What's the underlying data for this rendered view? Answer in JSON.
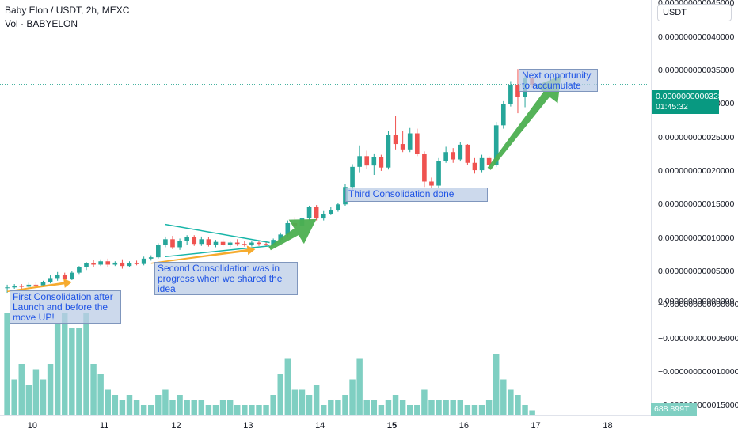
{
  "header": {
    "symbol": "Baby Elon / USDT, 2h, MEXC",
    "volume_label": "Vol · BABYELON"
  },
  "currency_selector": {
    "value": "USDT"
  },
  "price_tag": {
    "price": "0.000000000032890",
    "countdown": "01:45:32"
  },
  "volume_tag": {
    "value": "688.899T"
  },
  "notes": {
    "first": "First Consolidation after Launch and before the move UP!",
    "second": "Second Consolidation was in progress when we shared the idea",
    "third": "Third Consolidation done",
    "next": "Next opportunity to accumulate"
  },
  "colors": {
    "up": "#26a69a",
    "down": "#ef5350",
    "volume": "#7fcfc2",
    "arrow_orange": "#f5a623",
    "arrow_green": "#4caf50",
    "trendline": "#17b5a8",
    "price_line": "#089981"
  },
  "chart_data": {
    "type": "candlestick",
    "price_axis": {
      "labels": [
        "0.000000000045000",
        "0.000000000040000",
        "0.000000000035000",
        "0.000000000030000",
        "0.000000000025000",
        "0.000000000020000",
        "0.000000000015000",
        "0.000000000010000",
        "0.000000000005000",
        "0.000000000000000",
        "−0.000000000000000",
        "−0.000000000005000",
        "−0.000000000010000",
        "−0.000000000015000"
      ],
      "values": [
        45,
        40,
        35,
        30,
        25,
        20,
        15,
        10,
        5,
        0.5,
        0,
        -5,
        -10,
        -15
      ],
      "unit": "1e-12 USDT",
      "ylim": [
        -16.5,
        45.5
      ]
    },
    "time_axis": {
      "ticks": [
        "10",
        "11",
        "12",
        "13",
        "14",
        "15",
        "16",
        "17",
        "18"
      ],
      "bold": [
        "15"
      ]
    },
    "x_range": [
      9.55,
      18.6
    ],
    "candles": [
      {
        "t": 9.65,
        "o": 2.5,
        "h": 3.0,
        "l": 1.8,
        "c": 2.6
      },
      {
        "t": 9.75,
        "o": 2.6,
        "h": 3.1,
        "l": 2.4,
        "c": 2.8
      },
      {
        "t": 9.85,
        "o": 2.8,
        "h": 3.1,
        "l": 2.2,
        "c": 2.7
      },
      {
        "t": 9.95,
        "o": 2.7,
        "h": 3.3,
        "l": 2.5,
        "c": 3.0
      },
      {
        "t": 10.05,
        "o": 3.0,
        "h": 3.4,
        "l": 2.6,
        "c": 2.9
      },
      {
        "t": 10.15,
        "o": 2.9,
        "h": 3.6,
        "l": 2.8,
        "c": 3.4
      },
      {
        "t": 10.25,
        "o": 3.4,
        "h": 4.4,
        "l": 3.2,
        "c": 4.0
      },
      {
        "t": 10.35,
        "o": 4.0,
        "h": 4.9,
        "l": 3.6,
        "c": 4.5
      },
      {
        "t": 10.45,
        "o": 4.5,
        "h": 4.8,
        "l": 3.3,
        "c": 3.8
      },
      {
        "t": 10.55,
        "o": 3.8,
        "h": 5.0,
        "l": 3.7,
        "c": 4.8
      },
      {
        "t": 10.65,
        "o": 4.8,
        "h": 5.8,
        "l": 4.6,
        "c": 5.6
      },
      {
        "t": 10.75,
        "o": 5.6,
        "h": 6.4,
        "l": 5.2,
        "c": 6.2
      },
      {
        "t": 10.85,
        "o": 6.2,
        "h": 6.7,
        "l": 5.6,
        "c": 6.0
      },
      {
        "t": 10.95,
        "o": 6.0,
        "h": 6.8,
        "l": 5.8,
        "c": 6.5
      },
      {
        "t": 11.05,
        "o": 6.5,
        "h": 6.9,
        "l": 5.7,
        "c": 6.0
      },
      {
        "t": 11.15,
        "o": 6.0,
        "h": 6.5,
        "l": 5.8,
        "c": 6.3
      },
      {
        "t": 11.25,
        "o": 6.3,
        "h": 6.8,
        "l": 5.4,
        "c": 5.8
      },
      {
        "t": 11.35,
        "o": 5.8,
        "h": 6.5,
        "l": 5.6,
        "c": 6.2
      },
      {
        "t": 11.45,
        "o": 6.2,
        "h": 6.6,
        "l": 5.9,
        "c": 6.1
      },
      {
        "t": 11.55,
        "o": 6.1,
        "h": 7.2,
        "l": 5.9,
        "c": 6.9
      },
      {
        "t": 11.65,
        "o": 6.9,
        "h": 7.4,
        "l": 6.6,
        "c": 7.1
      },
      {
        "t": 11.75,
        "o": 7.1,
        "h": 9.2,
        "l": 6.9,
        "c": 9.0
      },
      {
        "t": 11.85,
        "o": 9.0,
        "h": 10.2,
        "l": 8.6,
        "c": 9.8
      },
      {
        "t": 11.95,
        "o": 9.8,
        "h": 10.3,
        "l": 8.3,
        "c": 8.6
      },
      {
        "t": 12.05,
        "o": 8.6,
        "h": 9.9,
        "l": 8.2,
        "c": 9.5
      },
      {
        "t": 12.15,
        "o": 9.5,
        "h": 10.4,
        "l": 9.0,
        "c": 10.1
      },
      {
        "t": 12.25,
        "o": 10.1,
        "h": 10.4,
        "l": 8.8,
        "c": 9.1
      },
      {
        "t": 12.35,
        "o": 9.1,
        "h": 10.2,
        "l": 8.8,
        "c": 9.8
      },
      {
        "t": 12.45,
        "o": 9.8,
        "h": 10.1,
        "l": 8.7,
        "c": 9.0
      },
      {
        "t": 12.55,
        "o": 9.0,
        "h": 9.7,
        "l": 8.6,
        "c": 9.4
      },
      {
        "t": 12.65,
        "o": 9.4,
        "h": 9.8,
        "l": 8.7,
        "c": 9.0
      },
      {
        "t": 12.75,
        "o": 9.0,
        "h": 9.6,
        "l": 8.6,
        "c": 9.3
      },
      {
        "t": 12.85,
        "o": 9.3,
        "h": 9.8,
        "l": 8.8,
        "c": 9.1
      },
      {
        "t": 12.95,
        "o": 9.1,
        "h": 9.5,
        "l": 8.7,
        "c": 9.0
      },
      {
        "t": 13.05,
        "o": 9.0,
        "h": 9.6,
        "l": 8.7,
        "c": 9.3
      },
      {
        "t": 13.15,
        "o": 9.3,
        "h": 9.6,
        "l": 8.8,
        "c": 9.1
      },
      {
        "t": 13.25,
        "o": 9.1,
        "h": 9.5,
        "l": 8.7,
        "c": 9.0
      },
      {
        "t": 13.35,
        "o": 9.0,
        "h": 9.9,
        "l": 8.8,
        "c": 9.7
      },
      {
        "t": 13.45,
        "o": 9.7,
        "h": 10.8,
        "l": 9.3,
        "c": 10.5
      },
      {
        "t": 13.55,
        "o": 10.5,
        "h": 12.6,
        "l": 10.2,
        "c": 12.2
      },
      {
        "t": 13.65,
        "o": 12.2,
        "h": 13.1,
        "l": 11.4,
        "c": 11.8
      },
      {
        "t": 13.75,
        "o": 11.8,
        "h": 13.2,
        "l": 11.5,
        "c": 12.9
      },
      {
        "t": 13.85,
        "o": 12.9,
        "h": 14.8,
        "l": 12.6,
        "c": 14.6
      },
      {
        "t": 13.95,
        "o": 14.6,
        "h": 14.9,
        "l": 12.6,
        "c": 12.9
      },
      {
        "t": 14.05,
        "o": 12.9,
        "h": 14.0,
        "l": 12.6,
        "c": 13.6
      },
      {
        "t": 14.15,
        "o": 13.6,
        "h": 14.6,
        "l": 13.4,
        "c": 14.2
      },
      {
        "t": 14.25,
        "o": 14.2,
        "h": 15.2,
        "l": 13.9,
        "c": 15.0
      },
      {
        "t": 14.35,
        "o": 15.0,
        "h": 18.0,
        "l": 14.8,
        "c": 17.6
      },
      {
        "t": 14.45,
        "o": 17.6,
        "h": 21.0,
        "l": 17.2,
        "c": 20.6
      },
      {
        "t": 14.55,
        "o": 20.6,
        "h": 23.8,
        "l": 19.8,
        "c": 22.2
      },
      {
        "t": 14.65,
        "o": 22.2,
        "h": 23.0,
        "l": 20.3,
        "c": 20.8
      },
      {
        "t": 14.75,
        "o": 20.8,
        "h": 22.6,
        "l": 19.4,
        "c": 22.1
      },
      {
        "t": 14.85,
        "o": 22.1,
        "h": 22.4,
        "l": 20.0,
        "c": 20.5
      },
      {
        "t": 14.95,
        "o": 20.5,
        "h": 25.9,
        "l": 20.2,
        "c": 25.4
      },
      {
        "t": 15.05,
        "o": 25.4,
        "h": 28.2,
        "l": 23.2,
        "c": 24.0
      },
      {
        "t": 15.15,
        "o": 24.0,
        "h": 26.0,
        "l": 22.8,
        "c": 23.2
      },
      {
        "t": 15.25,
        "o": 23.2,
        "h": 26.4,
        "l": 22.8,
        "c": 25.6
      },
      {
        "t": 15.35,
        "o": 25.6,
        "h": 26.3,
        "l": 22.2,
        "c": 22.5
      },
      {
        "t": 15.45,
        "o": 22.5,
        "h": 22.9,
        "l": 17.6,
        "c": 18.4
      },
      {
        "t": 15.55,
        "o": 18.4,
        "h": 19.0,
        "l": 17.4,
        "c": 17.8
      },
      {
        "t": 15.65,
        "o": 17.8,
        "h": 21.9,
        "l": 17.5,
        "c": 21.5
      },
      {
        "t": 15.75,
        "o": 21.5,
        "h": 23.6,
        "l": 21.2,
        "c": 22.8
      },
      {
        "t": 15.85,
        "o": 22.8,
        "h": 23.4,
        "l": 21.2,
        "c": 21.7
      },
      {
        "t": 15.95,
        "o": 21.7,
        "h": 24.3,
        "l": 21.4,
        "c": 23.9
      },
      {
        "t": 16.05,
        "o": 23.9,
        "h": 24.0,
        "l": 20.9,
        "c": 21.2
      },
      {
        "t": 16.15,
        "o": 21.2,
        "h": 21.9,
        "l": 19.6,
        "c": 20.1
      },
      {
        "t": 16.25,
        "o": 20.1,
        "h": 22.4,
        "l": 19.8,
        "c": 21.9
      },
      {
        "t": 16.35,
        "o": 21.9,
        "h": 22.2,
        "l": 20.4,
        "c": 20.9
      },
      {
        "t": 16.45,
        "o": 20.9,
        "h": 27.3,
        "l": 20.6,
        "c": 26.8
      },
      {
        "t": 16.55,
        "o": 26.8,
        "h": 30.4,
        "l": 26.3,
        "c": 30.0
      },
      {
        "t": 16.65,
        "o": 30.0,
        "h": 33.4,
        "l": 29.6,
        "c": 32.8
      },
      {
        "t": 16.75,
        "o": 32.8,
        "h": 35.2,
        "l": 28.6,
        "c": 31.0
      },
      {
        "t": 16.85,
        "o": 31.0,
        "h": 34.2,
        "l": 29.5,
        "c": 33.8
      },
      {
        "t": 16.95,
        "o": 33.8,
        "h": 34.0,
        "l": 32.4,
        "c": 32.9
      }
    ],
    "volume": [
      {
        "t": 9.65,
        "v": 20
      },
      {
        "t": 9.75,
        "v": 7
      },
      {
        "t": 9.85,
        "v": 10
      },
      {
        "t": 9.95,
        "v": 6
      },
      {
        "t": 10.05,
        "v": 9
      },
      {
        "t": 10.15,
        "v": 7
      },
      {
        "t": 10.25,
        "v": 10
      },
      {
        "t": 10.35,
        "v": 18
      },
      {
        "t": 10.45,
        "v": 20
      },
      {
        "t": 10.55,
        "v": 17
      },
      {
        "t": 10.65,
        "v": 17
      },
      {
        "t": 10.75,
        "v": 20
      },
      {
        "t": 10.85,
        "v": 10
      },
      {
        "t": 10.95,
        "v": 8
      },
      {
        "t": 11.05,
        "v": 5
      },
      {
        "t": 11.15,
        "v": 4
      },
      {
        "t": 11.25,
        "v": 3
      },
      {
        "t": 11.35,
        "v": 4
      },
      {
        "t": 11.45,
        "v": 3
      },
      {
        "t": 11.55,
        "v": 2
      },
      {
        "t": 11.65,
        "v": 2
      },
      {
        "t": 11.75,
        "v": 4
      },
      {
        "t": 11.85,
        "v": 5
      },
      {
        "t": 11.95,
        "v": 3
      },
      {
        "t": 12.05,
        "v": 4
      },
      {
        "t": 12.15,
        "v": 3
      },
      {
        "t": 12.25,
        "v": 3
      },
      {
        "t": 12.35,
        "v": 3
      },
      {
        "t": 12.45,
        "v": 2
      },
      {
        "t": 12.55,
        "v": 2
      },
      {
        "t": 12.65,
        "v": 3
      },
      {
        "t": 12.75,
        "v": 3
      },
      {
        "t": 12.85,
        "v": 2
      },
      {
        "t": 12.95,
        "v": 2
      },
      {
        "t": 13.05,
        "v": 2
      },
      {
        "t": 13.15,
        "v": 2
      },
      {
        "t": 13.25,
        "v": 2
      },
      {
        "t": 13.35,
        "v": 4
      },
      {
        "t": 13.45,
        "v": 8
      },
      {
        "t": 13.55,
        "v": 11
      },
      {
        "t": 13.65,
        "v": 5
      },
      {
        "t": 13.75,
        "v": 5
      },
      {
        "t": 13.85,
        "v": 4
      },
      {
        "t": 13.95,
        "v": 6
      },
      {
        "t": 14.05,
        "v": 2
      },
      {
        "t": 14.15,
        "v": 3
      },
      {
        "t": 14.25,
        "v": 3
      },
      {
        "t": 14.35,
        "v": 4
      },
      {
        "t": 14.45,
        "v": 7
      },
      {
        "t": 14.55,
        "v": 11
      },
      {
        "t": 14.65,
        "v": 3
      },
      {
        "t": 14.75,
        "v": 3
      },
      {
        "t": 14.85,
        "v": 2
      },
      {
        "t": 14.95,
        "v": 3
      },
      {
        "t": 15.05,
        "v": 4
      },
      {
        "t": 15.15,
        "v": 3
      },
      {
        "t": 15.25,
        "v": 2
      },
      {
        "t": 15.35,
        "v": 2
      },
      {
        "t": 15.45,
        "v": 5
      },
      {
        "t": 15.55,
        "v": 3
      },
      {
        "t": 15.65,
        "v": 3
      },
      {
        "t": 15.75,
        "v": 3
      },
      {
        "t": 15.85,
        "v": 3
      },
      {
        "t": 15.95,
        "v": 3
      },
      {
        "t": 16.05,
        "v": 2
      },
      {
        "t": 16.15,
        "v": 2
      },
      {
        "t": 16.25,
        "v": 2
      },
      {
        "t": 16.35,
        "v": 3
      },
      {
        "t": 16.45,
        "v": 12
      },
      {
        "t": 16.55,
        "v": 7
      },
      {
        "t": 16.65,
        "v": 5
      },
      {
        "t": 16.75,
        "v": 4
      },
      {
        "t": 16.85,
        "v": 2
      },
      {
        "t": 16.95,
        "v": 1
      }
    ],
    "volume_max": 20,
    "last_price": 32.89,
    "annotations": {
      "trendlines": [
        {
          "from": [
            11.85,
            12.0
          ],
          "to": [
            13.3,
            9.3
          ]
        },
        {
          "from": [
            11.85,
            7.2
          ],
          "to": [
            13.3,
            8.8
          ]
        }
      ],
      "orange_arrows": [
        {
          "from": [
            9.65,
            2.0
          ],
          "to": [
            10.55,
            3.4
          ]
        },
        {
          "from": [
            11.65,
            6.2
          ],
          "to": [
            13.1,
            8.3
          ]
        }
      ],
      "green_arrows": [
        {
          "from": [
            13.3,
            8.4
          ],
          "to": [
            13.95,
            12.8
          ]
        },
        {
          "from": [
            16.35,
            20.3
          ],
          "to": [
            17.35,
            34.2
          ]
        }
      ]
    }
  }
}
